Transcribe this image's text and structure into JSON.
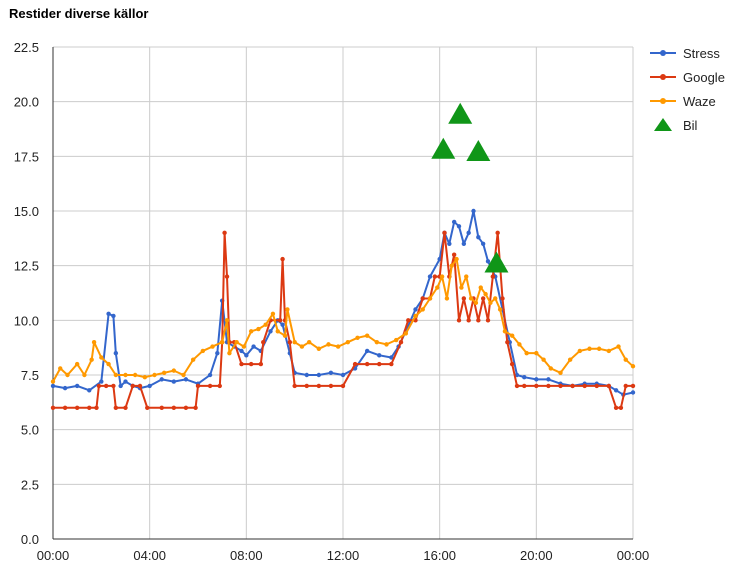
{
  "chart_data": {
    "type": "line",
    "title": "Restider diverse källor",
    "xlabel": "",
    "ylabel": "",
    "ylim": [
      0,
      22.5
    ],
    "yticks": [
      "0.0",
      "2.5",
      "5.0",
      "7.5",
      "10.0",
      "12.5",
      "15.0",
      "17.5",
      "20.0",
      "22.5"
    ],
    "xlim": [
      0,
      24
    ],
    "xticks": [
      "00:00",
      "04:00",
      "08:00",
      "12:00",
      "16:00",
      "20:00",
      "00:00"
    ],
    "grid": true,
    "legend_position": "right",
    "series": [
      {
        "name": "Stress",
        "color": "#3366cc",
        "marker": "circle",
        "points": [
          [
            0,
            7.0
          ],
          [
            0.5,
            6.9
          ],
          [
            1.0,
            7.0
          ],
          [
            1.5,
            6.8
          ],
          [
            2.0,
            7.2
          ],
          [
            2.3,
            10.3
          ],
          [
            2.5,
            10.2
          ],
          [
            2.6,
            8.5
          ],
          [
            2.8,
            7.0
          ],
          [
            3.0,
            7.2
          ],
          [
            3.3,
            7.0
          ],
          [
            3.6,
            6.9
          ],
          [
            4.0,
            7.0
          ],
          [
            4.5,
            7.3
          ],
          [
            5.0,
            7.2
          ],
          [
            5.5,
            7.3
          ],
          [
            6.0,
            7.1
          ],
          [
            6.5,
            7.5
          ],
          [
            6.8,
            8.5
          ],
          [
            7.0,
            10.9
          ],
          [
            7.2,
            9.0
          ],
          [
            7.5,
            8.8
          ],
          [
            7.8,
            8.6
          ],
          [
            8.0,
            8.4
          ],
          [
            8.3,
            8.8
          ],
          [
            8.6,
            8.6
          ],
          [
            9.0,
            9.5
          ],
          [
            9.3,
            10.0
          ],
          [
            9.5,
            9.8
          ],
          [
            9.8,
            8.5
          ],
          [
            10.0,
            7.6
          ],
          [
            10.5,
            7.5
          ],
          [
            11.0,
            7.5
          ],
          [
            11.5,
            7.6
          ],
          [
            12.0,
            7.5
          ],
          [
            12.5,
            7.8
          ],
          [
            13.0,
            8.6
          ],
          [
            13.5,
            8.4
          ],
          [
            14.0,
            8.3
          ],
          [
            14.3,
            8.8
          ],
          [
            14.6,
            9.5
          ],
          [
            15.0,
            10.5
          ],
          [
            15.3,
            11.0
          ],
          [
            15.6,
            12.0
          ],
          [
            16.0,
            12.8
          ],
          [
            16.2,
            14.0
          ],
          [
            16.4,
            13.5
          ],
          [
            16.6,
            14.5
          ],
          [
            16.8,
            14.3
          ],
          [
            17.0,
            13.5
          ],
          [
            17.2,
            14.0
          ],
          [
            17.4,
            15.0
          ],
          [
            17.6,
            13.8
          ],
          [
            17.8,
            13.5
          ],
          [
            18.0,
            12.7
          ],
          [
            18.3,
            12.0
          ],
          [
            18.6,
            10.5
          ],
          [
            18.9,
            9.0
          ],
          [
            19.2,
            7.5
          ],
          [
            19.5,
            7.4
          ],
          [
            20.0,
            7.3
          ],
          [
            20.5,
            7.3
          ],
          [
            21.0,
            7.1
          ],
          [
            21.5,
            7.0
          ],
          [
            22.0,
            7.1
          ],
          [
            22.5,
            7.1
          ],
          [
            23.0,
            7.0
          ],
          [
            23.3,
            6.8
          ],
          [
            23.6,
            6.6
          ],
          [
            24.0,
            6.7
          ]
        ]
      },
      {
        "name": "Google",
        "color": "#dc3912",
        "marker": "circle",
        "points": [
          [
            0,
            6.0
          ],
          [
            0.5,
            6.0
          ],
          [
            1.0,
            6.0
          ],
          [
            1.5,
            6.0
          ],
          [
            1.8,
            6.0
          ],
          [
            1.9,
            7.0
          ],
          [
            2.2,
            7.0
          ],
          [
            2.5,
            7.0
          ],
          [
            2.6,
            6.0
          ],
          [
            3.0,
            6.0
          ],
          [
            3.3,
            7.0
          ],
          [
            3.6,
            7.0
          ],
          [
            3.9,
            6.0
          ],
          [
            4.5,
            6.0
          ],
          [
            5.0,
            6.0
          ],
          [
            5.5,
            6.0
          ],
          [
            5.9,
            6.0
          ],
          [
            6.0,
            7.0
          ],
          [
            6.5,
            7.0
          ],
          [
            6.9,
            7.0
          ],
          [
            7.0,
            9.0
          ],
          [
            7.1,
            14.0
          ],
          [
            7.2,
            12.0
          ],
          [
            7.3,
            9.0
          ],
          [
            7.5,
            9.0
          ],
          [
            7.8,
            8.0
          ],
          [
            8.2,
            8.0
          ],
          [
            8.6,
            8.0
          ],
          [
            8.7,
            9.0
          ],
          [
            9.0,
            10.0
          ],
          [
            9.4,
            10.0
          ],
          [
            9.5,
            12.8
          ],
          [
            9.6,
            10.0
          ],
          [
            9.8,
            9.0
          ],
          [
            10.0,
            7.0
          ],
          [
            10.5,
            7.0
          ],
          [
            11.0,
            7.0
          ],
          [
            11.5,
            7.0
          ],
          [
            12.0,
            7.0
          ],
          [
            12.5,
            8.0
          ],
          [
            13.0,
            8.0
          ],
          [
            13.5,
            8.0
          ],
          [
            14.0,
            8.0
          ],
          [
            14.4,
            9.0
          ],
          [
            14.7,
            10.0
          ],
          [
            15.0,
            10.0
          ],
          [
            15.3,
            11.0
          ],
          [
            15.6,
            11.0
          ],
          [
            15.8,
            12.0
          ],
          [
            16.0,
            12.0
          ],
          [
            16.2,
            14.0
          ],
          [
            16.4,
            12.0
          ],
          [
            16.6,
            13.0
          ],
          [
            16.8,
            10.0
          ],
          [
            17.0,
            11.0
          ],
          [
            17.2,
            10.0
          ],
          [
            17.4,
            11.0
          ],
          [
            17.6,
            10.0
          ],
          [
            17.8,
            11.0
          ],
          [
            18.0,
            10.0
          ],
          [
            18.2,
            12.0
          ],
          [
            18.4,
            14.0
          ],
          [
            18.6,
            11.0
          ],
          [
            18.8,
            9.0
          ],
          [
            19.0,
            8.0
          ],
          [
            19.2,
            7.0
          ],
          [
            19.5,
            7.0
          ],
          [
            20.0,
            7.0
          ],
          [
            20.5,
            7.0
          ],
          [
            21.0,
            7.0
          ],
          [
            21.5,
            7.0
          ],
          [
            22.0,
            7.0
          ],
          [
            22.5,
            7.0
          ],
          [
            23.0,
            7.0
          ],
          [
            23.3,
            6.0
          ],
          [
            23.5,
            6.0
          ],
          [
            23.7,
            7.0
          ],
          [
            24.0,
            7.0
          ]
        ]
      },
      {
        "name": "Waze",
        "color": "#ff9900",
        "marker": "circle",
        "points": [
          [
            0,
            7.2
          ],
          [
            0.3,
            7.8
          ],
          [
            0.6,
            7.5
          ],
          [
            1.0,
            8.0
          ],
          [
            1.3,
            7.5
          ],
          [
            1.6,
            8.2
          ],
          [
            1.7,
            9.0
          ],
          [
            2.0,
            8.3
          ],
          [
            2.3,
            8.0
          ],
          [
            2.6,
            7.5
          ],
          [
            3.0,
            7.5
          ],
          [
            3.4,
            7.5
          ],
          [
            3.8,
            7.4
          ],
          [
            4.2,
            7.5
          ],
          [
            4.6,
            7.6
          ],
          [
            5.0,
            7.7
          ],
          [
            5.4,
            7.5
          ],
          [
            5.8,
            8.2
          ],
          [
            6.2,
            8.6
          ],
          [
            6.6,
            8.8
          ],
          [
            7.0,
            9.0
          ],
          [
            7.2,
            10.0
          ],
          [
            7.3,
            8.5
          ],
          [
            7.6,
            9.0
          ],
          [
            7.9,
            8.8
          ],
          [
            8.2,
            9.5
          ],
          [
            8.5,
            9.6
          ],
          [
            8.8,
            9.8
          ],
          [
            9.1,
            10.3
          ],
          [
            9.3,
            9.5
          ],
          [
            9.6,
            9.3
          ],
          [
            9.7,
            10.5
          ],
          [
            10.0,
            9.0
          ],
          [
            10.3,
            8.8
          ],
          [
            10.6,
            9.0
          ],
          [
            11.0,
            8.7
          ],
          [
            11.4,
            8.9
          ],
          [
            11.8,
            8.8
          ],
          [
            12.2,
            9.0
          ],
          [
            12.6,
            9.2
          ],
          [
            13.0,
            9.3
          ],
          [
            13.4,
            9.0
          ],
          [
            13.8,
            8.9
          ],
          [
            14.2,
            9.1
          ],
          [
            14.6,
            9.4
          ],
          [
            15.0,
            10.2
          ],
          [
            15.3,
            10.5
          ],
          [
            15.6,
            11.0
          ],
          [
            15.9,
            11.5
          ],
          [
            16.1,
            12.0
          ],
          [
            16.3,
            11.0
          ],
          [
            16.5,
            12.5
          ],
          [
            16.7,
            12.8
          ],
          [
            16.9,
            11.5
          ],
          [
            17.1,
            12.0
          ],
          [
            17.3,
            11.0
          ],
          [
            17.5,
            10.8
          ],
          [
            17.7,
            11.5
          ],
          [
            17.9,
            11.2
          ],
          [
            18.1,
            10.8
          ],
          [
            18.3,
            11.0
          ],
          [
            18.5,
            10.5
          ],
          [
            18.7,
            9.5
          ],
          [
            19.0,
            9.3
          ],
          [
            19.3,
            8.9
          ],
          [
            19.6,
            8.5
          ],
          [
            20.0,
            8.5
          ],
          [
            20.3,
            8.2
          ],
          [
            20.6,
            7.8
          ],
          [
            21.0,
            7.6
          ],
          [
            21.4,
            8.2
          ],
          [
            21.8,
            8.6
          ],
          [
            22.2,
            8.7
          ],
          [
            22.6,
            8.7
          ],
          [
            23.0,
            8.6
          ],
          [
            23.4,
            8.8
          ],
          [
            23.7,
            8.2
          ],
          [
            24.0,
            7.9
          ]
        ]
      },
      {
        "name": "Bil",
        "color": "#109618",
        "marker": "triangle",
        "points": [
          [
            16.15,
            17.8
          ],
          [
            16.85,
            19.4
          ],
          [
            17.6,
            17.7
          ],
          [
            18.35,
            12.6
          ]
        ]
      }
    ]
  }
}
